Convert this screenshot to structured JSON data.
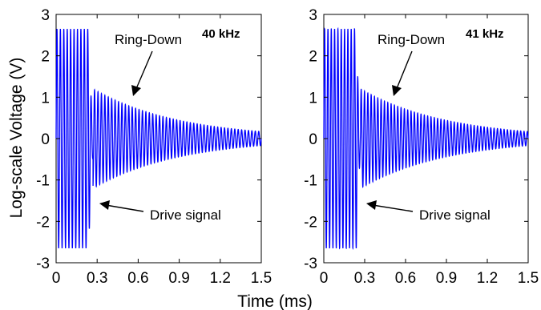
{
  "chart_data": {
    "type": "line",
    "xlabel": "Time (ms)",
    "ylabel": "Log-scale Voltage (V)",
    "xlim": [
      0,
      1.5
    ],
    "ylim": [
      -3,
      3
    ],
    "xticks": [
      "0",
      "0.3",
      "0.6",
      "0.9",
      "1.2",
      "1.5"
    ],
    "yticks": [
      "-3",
      "-2",
      "-1",
      "0",
      "1",
      "2",
      "3"
    ],
    "grid": false,
    "line_color": "#0000ff",
    "panels": [
      {
        "frequency_label": "40 kHz",
        "frequency_khz": 40,
        "drive_end_ms": 0.24,
        "drive_amplitude_v": 2.65,
        "ringdown_start_ms": 0.27,
        "ringdown_amplitude_start_v": 1.2,
        "ringdown_amplitude_end_v": 0.17,
        "annotations": {
          "ringdown": "Ring-Down",
          "drive": "Drive signal"
        }
      },
      {
        "frequency_label": "41 kHz",
        "frequency_khz": 41,
        "drive_end_ms": 0.24,
        "drive_amplitude_v": 2.65,
        "ringdown_start_ms": 0.27,
        "ringdown_amplitude_start_v": 1.2,
        "ringdown_amplitude_end_v": 0.17,
        "annotations": {
          "ringdown": "Ring-Down",
          "drive": "Drive signal"
        }
      }
    ]
  }
}
